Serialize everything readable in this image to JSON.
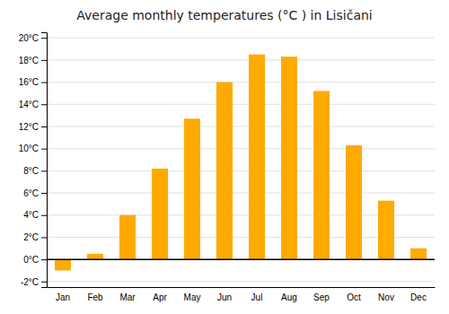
{
  "chart_data": {
    "type": "bar",
    "title": "Average monthly temperatures (°C ) in Lisičani",
    "categories": [
      "Jan",
      "Feb",
      "Mar",
      "Apr",
      "May",
      "Jun",
      "Jul",
      "Aug",
      "Sep",
      "Oct",
      "Nov",
      "Dec"
    ],
    "values": [
      -1.0,
      0.5,
      4.0,
      8.2,
      12.7,
      16.0,
      18.5,
      18.3,
      15.2,
      10.3,
      5.3,
      1.0
    ],
    "color": "#FFAA00",
    "ylim": [
      -2.5,
      20.5
    ],
    "yticks": [
      {
        "value": -2,
        "label": "-2°C"
      },
      {
        "value": 0,
        "label": "0°C"
      },
      {
        "value": 2,
        "label": "2°C"
      },
      {
        "value": 4,
        "label": "4°C"
      },
      {
        "value": 6,
        "label": "6°C"
      },
      {
        "value": 8,
        "label": "8°C"
      },
      {
        "value": 10,
        "label": "10°C"
      },
      {
        "value": 12,
        "label": "12°C"
      },
      {
        "value": 14,
        "label": "14°C"
      },
      {
        "value": 16,
        "label": "16°C"
      },
      {
        "value": 18,
        "label": "18°C"
      },
      {
        "value": 20,
        "label": "20°C"
      }
    ],
    "grid": true
  }
}
